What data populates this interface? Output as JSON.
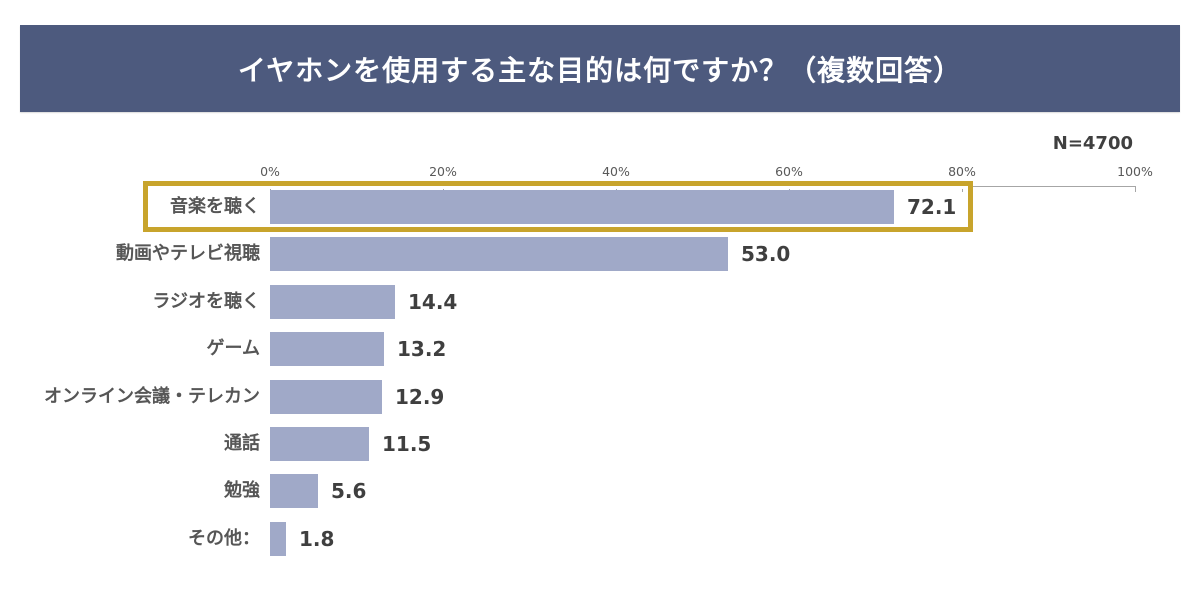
{
  "header": {
    "title": "イヤホンを使用する主な目的は何ですか？（複数回答）"
  },
  "sample_size_label": "N=4700",
  "chart_data": {
    "type": "bar",
    "orientation": "horizontal",
    "title": "イヤホンを使用する主な目的は何ですか？（複数回答）",
    "categories": [
      "音楽を聴く",
      "動画やテレビ視聴",
      "ラジオを聴く",
      "ゲーム",
      "オンライン会議・テレカン",
      "通話",
      "勉強",
      "その他："
    ],
    "values": [
      72.1,
      53.0,
      14.4,
      13.2,
      12.9,
      11.5,
      5.6,
      1.8
    ],
    "value_labels": [
      "72.1",
      "53.0",
      "14.4",
      "13.2",
      "12.9",
      "11.5",
      "5.6",
      "1.8"
    ],
    "unit": "percent",
    "xlim": [
      0,
      100
    ],
    "x_ticks": [
      0,
      20,
      40,
      60,
      80,
      100
    ],
    "x_tick_labels": [
      "0%",
      "20%",
      "40%",
      "60%",
      "80%",
      "100%"
    ],
    "highlighted_category_index": 0,
    "legend": "none",
    "grid": "off"
  },
  "colors": {
    "background": "#FFFFFF",
    "header_bg": "#4D5A7E",
    "header_text": "#FFFFFF",
    "bar_fill": "#A0A9C8",
    "highlight_border": "#C8A42C",
    "highlight_inner": "#FFFFFF",
    "axis_line": "#A6A6A6",
    "tick_text": "#595959",
    "category_text": "#565656",
    "value_text": "#3F3F3F"
  }
}
